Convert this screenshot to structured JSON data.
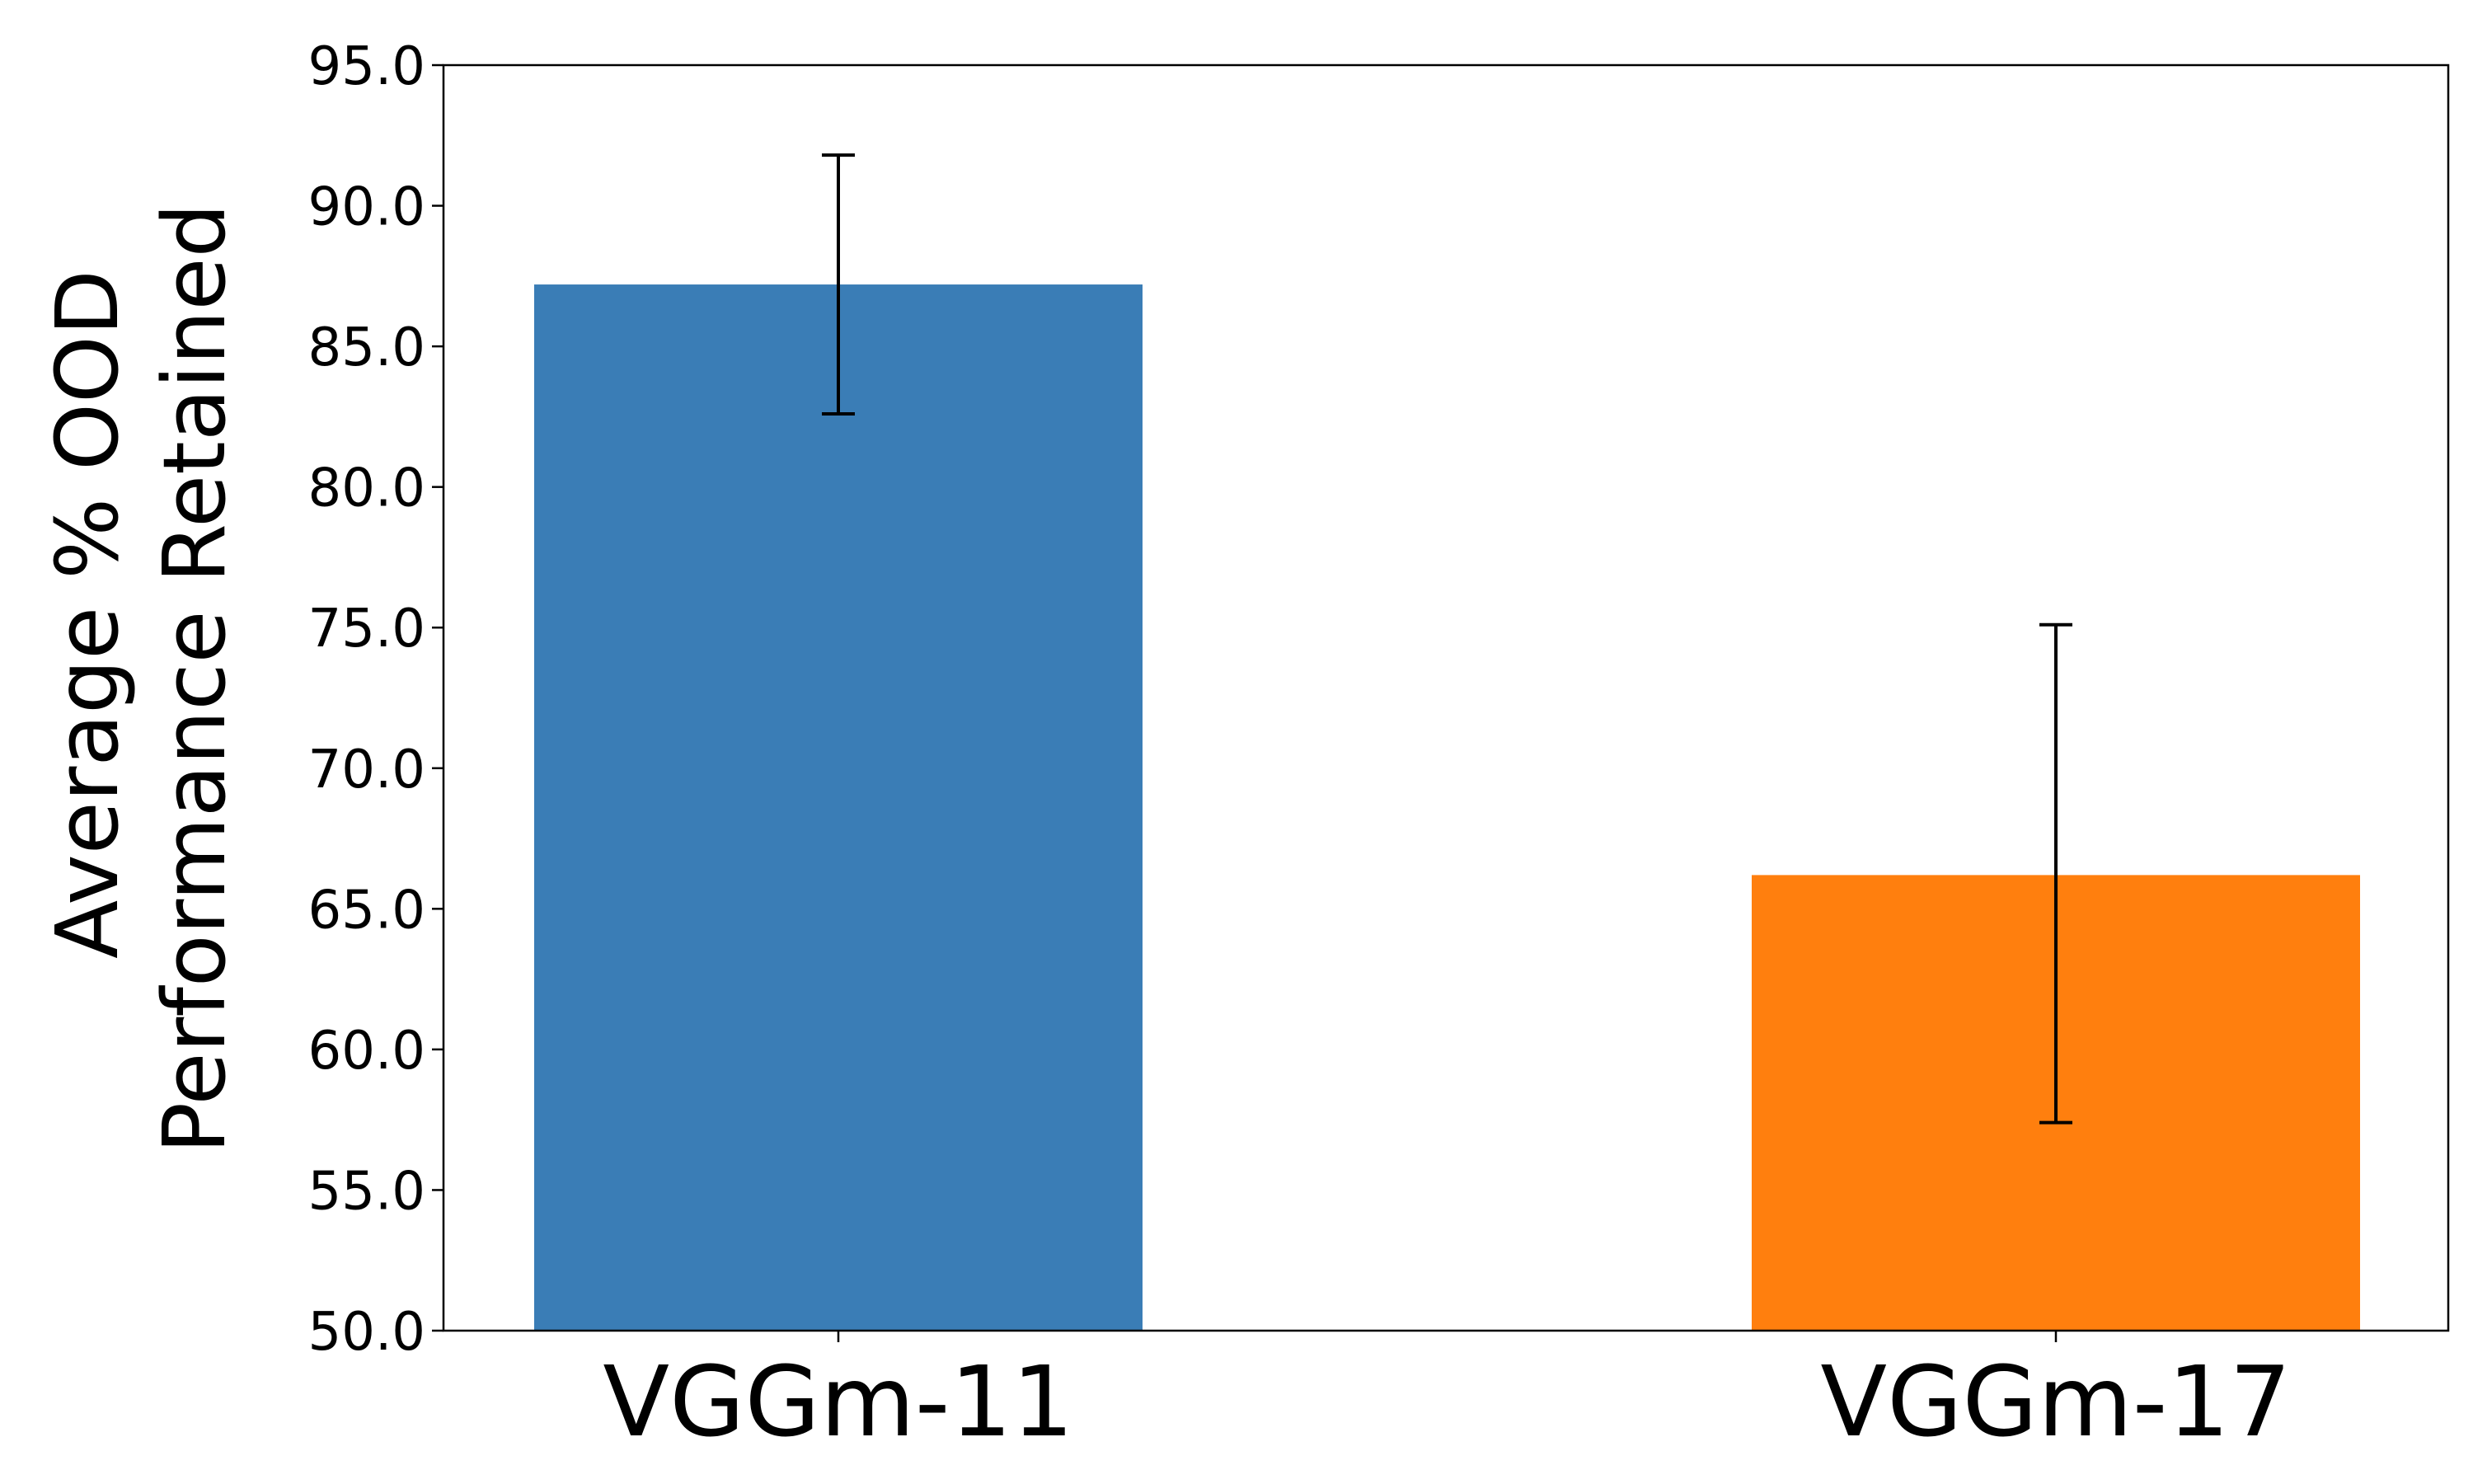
{
  "chart_data": {
    "type": "bar",
    "categories": [
      "VGGm-11",
      "VGGm-17"
    ],
    "values": [
      87.2,
      66.2
    ],
    "errors": [
      {
        "low": 82.6,
        "high": 91.8
      },
      {
        "low": 57.4,
        "high": 75.1
      }
    ],
    "colors": [
      "#3a7db6",
      "#ff7f0e"
    ],
    "ylabel_lines": [
      "Average % OOD",
      "Performance Retained"
    ],
    "xlabel": "",
    "ylim": [
      50,
      95
    ],
    "yticks": [
      "50.0",
      "55.0",
      "60.0",
      "65.0",
      "70.0",
      "75.0",
      "80.0",
      "85.0",
      "90.0",
      "95.0"
    ],
    "grid": false,
    "legend": "none"
  }
}
